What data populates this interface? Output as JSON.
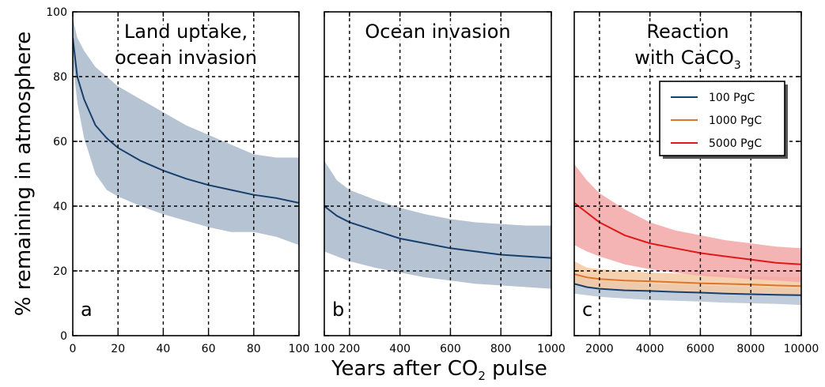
{
  "figure": {
    "ylabel": "% remaining in atmosphere",
    "xlabel_prefix": "Years after CO",
    "xlabel_sub": "2",
    "xlabel_suffix": " pulse"
  },
  "colors": {
    "band_blue": "#b6c3d3",
    "line_blue": "#173f6e",
    "band_orange": "#f3c9a2",
    "line_orange": "#e0742a",
    "band_red": "#f3a7a7",
    "line_red": "#e01818"
  },
  "chart_data": [
    {
      "type": "area",
      "panel": "a",
      "title": [
        "Land uptake,",
        "ocean invasion"
      ],
      "ylabel": "% remaining in atmosphere",
      "xlim": [
        0,
        100
      ],
      "ylim": [
        0,
        100
      ],
      "xticks": [
        0,
        20,
        40,
        60,
        80,
        100
      ],
      "yticks": [
        0,
        20,
        40,
        60,
        80,
        100
      ],
      "grid": true,
      "series": [
        {
          "x": [
            0,
            2,
            5,
            10,
            15,
            20,
            30,
            40,
            50,
            60,
            70,
            80,
            90,
            100
          ],
          "y": [
            92,
            80,
            73,
            65,
            61,
            58,
            54,
            51,
            48.5,
            46.5,
            45,
            43.5,
            42.5,
            41
          ],
          "upper": [
            98,
            92,
            88,
            83,
            80,
            77,
            73,
            69,
            65,
            62,
            59,
            56,
            55,
            55
          ],
          "lower": [
            85,
            72,
            61,
            50,
            45,
            43,
            40,
            37.5,
            35.5,
            33.5,
            32,
            32,
            30.5,
            28
          ]
        }
      ]
    },
    {
      "type": "area",
      "panel": "b",
      "title": [
        "Ocean invasion"
      ],
      "xlim": [
        100,
        1000
      ],
      "ylim": [
        0,
        100
      ],
      "xticks": [
        100,
        200,
        400,
        600,
        800,
        1000
      ],
      "grid": true,
      "series": [
        {
          "x": [
            100,
            150,
            200,
            300,
            400,
            500,
            600,
            700,
            800,
            900,
            1000
          ],
          "y": [
            40,
            37,
            35,
            32.5,
            30,
            28.5,
            27,
            26,
            25,
            24.5,
            24
          ],
          "upper": [
            54,
            48,
            45,
            42,
            39.5,
            37.5,
            36,
            35,
            34.5,
            34,
            34
          ],
          "lower": [
            26,
            24.5,
            23,
            21,
            19.5,
            18,
            17,
            16,
            15.5,
            15,
            14.5
          ]
        }
      ]
    },
    {
      "type": "area",
      "panel": "c",
      "title": [
        "Reaction",
        "with CaCO"
      ],
      "title_sub": "3",
      "xlim": [
        1000,
        10000
      ],
      "ylim": [
        0,
        100
      ],
      "xticks": [
        2000,
        4000,
        6000,
        8000,
        10000
      ],
      "grid": true,
      "legend": "top-right",
      "series": [
        {
          "name": "100 PgC",
          "color": "line_blue",
          "band": "band_blue",
          "x": [
            1000,
            1500,
            2000,
            3000,
            4000,
            5000,
            6000,
            7000,
            8000,
            9000,
            10000
          ],
          "y": [
            16,
            15,
            14.5,
            14,
            13.8,
            13.5,
            13.3,
            13,
            12.8,
            12.6,
            12.5
          ],
          "upper": [
            19,
            17.5,
            17,
            16.5,
            16,
            15.8,
            15.5,
            15.2,
            15,
            14.8,
            14.5
          ],
          "lower": [
            13,
            12.5,
            12,
            11.5,
            11,
            10.8,
            10.5,
            10.2,
            10,
            9.8,
            9.5
          ]
        },
        {
          "name": "1000 PgC",
          "color": "line_orange",
          "band": "band_orange",
          "x": [
            1000,
            1500,
            2000,
            3000,
            4000,
            5000,
            6000,
            7000,
            8000,
            9000,
            10000
          ],
          "y": [
            19,
            18,
            17.5,
            17,
            16.8,
            16.5,
            16.2,
            16,
            15.8,
            15.5,
            15.3
          ],
          "upper": [
            23,
            21,
            20.5,
            20,
            19.5,
            19.2,
            19,
            18.8,
            18.5,
            18.2,
            18
          ],
          "lower": [
            15.5,
            14.8,
            14.5,
            14,
            13.8,
            13.5,
            13.2,
            13,
            12.8,
            12.6,
            12.5
          ]
        },
        {
          "name": "5000 PgC",
          "color": "line_red",
          "band": "band_red",
          "x": [
            1000,
            1500,
            2000,
            3000,
            4000,
            5000,
            6000,
            7000,
            8000,
            9000,
            10000
          ],
          "y": [
            41,
            38,
            35,
            31,
            28.5,
            27,
            25.5,
            24.5,
            23.5,
            22.5,
            22
          ],
          "upper": [
            53,
            48,
            44,
            39,
            35,
            32.5,
            31,
            29.5,
            28.5,
            27.5,
            27
          ],
          "lower": [
            28,
            26,
            24.5,
            22,
            20.5,
            19.5,
            18.5,
            18,
            17.5,
            17,
            16.5
          ]
        }
      ]
    }
  ]
}
